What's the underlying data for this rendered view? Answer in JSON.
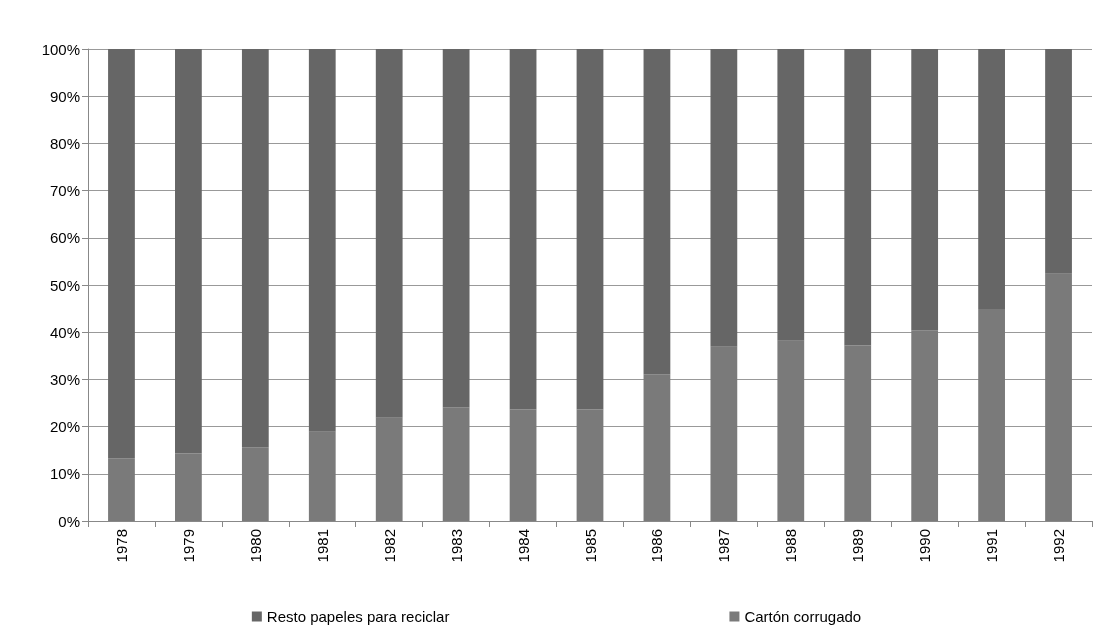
{
  "chart_data": {
    "type": "bar",
    "stacked": true,
    "categories": [
      "1978",
      "1979",
      "1980",
      "1981",
      "1982",
      "1983",
      "1984",
      "1985",
      "1986",
      "1987",
      "1988",
      "1989",
      "1990",
      "1991",
      "1992"
    ],
    "series": [
      {
        "name": "Cartón corrugado",
        "color": "#7a7a7a",
        "values": [
          13.3,
          14.3,
          15.6,
          18.9,
          21.9,
          24.1,
          23.6,
          23.6,
          31.1,
          36.9,
          38.2,
          37.2,
          40.4,
          44.9,
          52.4
        ]
      },
      {
        "name": "Resto papeles para reciclar",
        "color": "#666666",
        "values": [
          86.7,
          85.7,
          84.4,
          81.1,
          78.1,
          75.9,
          76.4,
          76.4,
          68.9,
          63.1,
          61.8,
          62.8,
          59.6,
          55.1,
          47.6
        ]
      }
    ],
    "ylim": [
      0,
      100
    ],
    "yticks": [
      {
        "value": 0,
        "label": "0%"
      },
      {
        "value": 10,
        "label": "10%"
      },
      {
        "value": 20,
        "label": "20%"
      },
      {
        "value": 30,
        "label": "30%"
      },
      {
        "value": 40,
        "label": "40%"
      },
      {
        "value": 50,
        "label": "50%"
      },
      {
        "value": 60,
        "label": "60%"
      },
      {
        "value": 70,
        "label": "70%"
      },
      {
        "value": 80,
        "label": "80%"
      },
      {
        "value": 90,
        "label": "90%"
      },
      {
        "value": 100,
        "label": "100%"
      }
    ],
    "grid": "y",
    "legend": "bottom"
  }
}
